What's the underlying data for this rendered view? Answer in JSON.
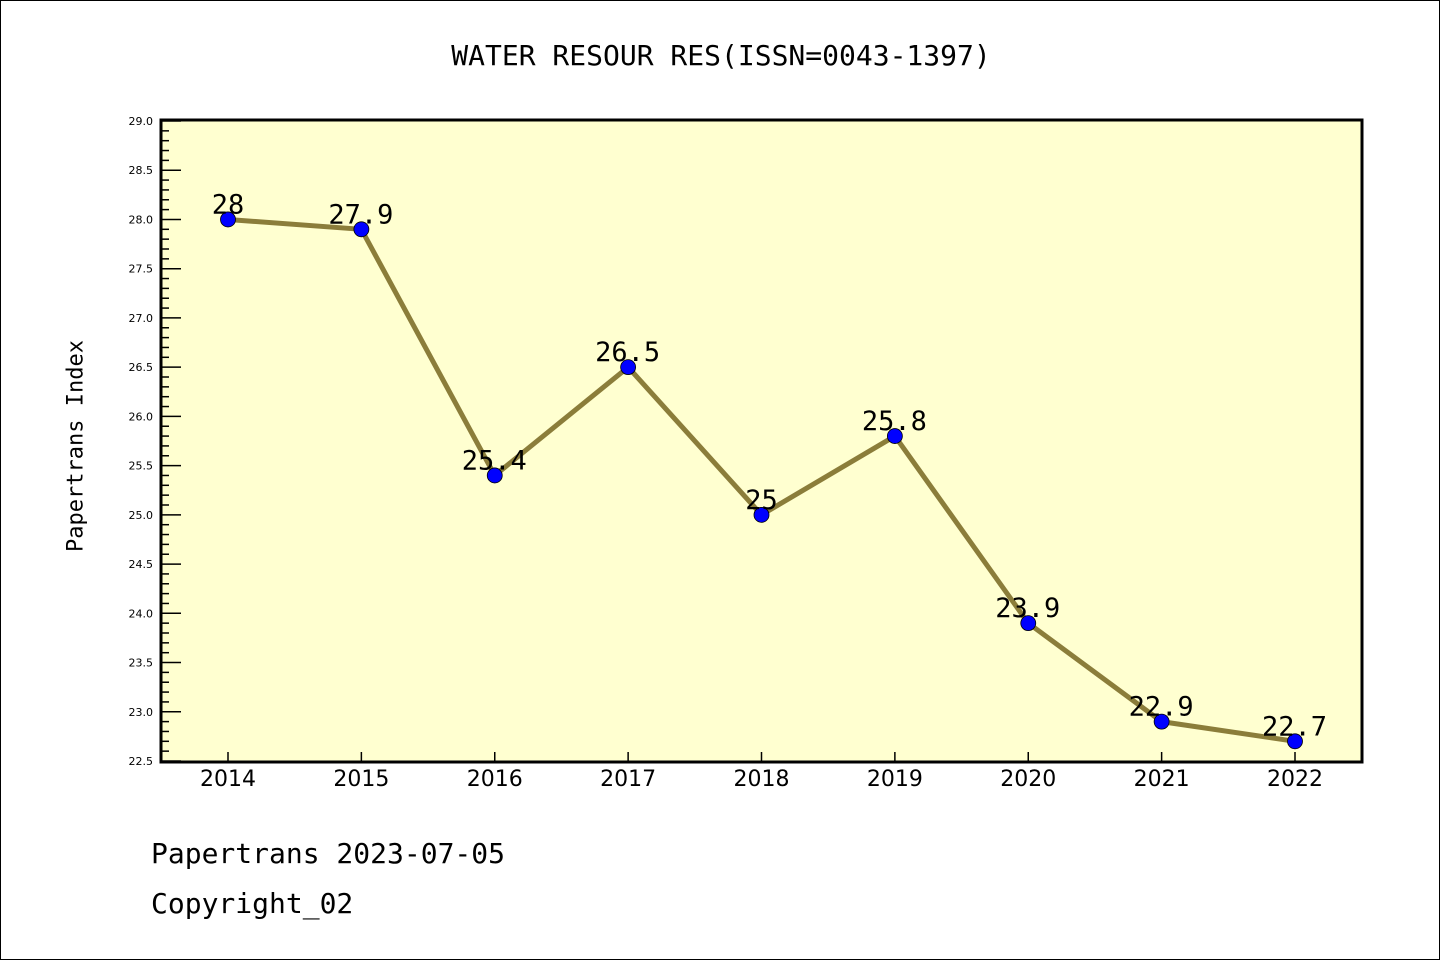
{
  "chart_data": {
    "type": "line",
    "title": "WATER RESOUR RES(ISSN=0043-1397)",
    "xlabel": "",
    "ylabel": "Papertrans Index",
    "x": [
      "2014",
      "2015",
      "2016",
      "2017",
      "2018",
      "2019",
      "2020",
      "2021",
      "2022"
    ],
    "values": [
      28,
      27.9,
      25.4,
      26.5,
      25,
      25.8,
      23.9,
      22.9,
      22.7
    ],
    "data_labels": [
      "28",
      "27.9",
      "25.4",
      "26.5",
      "25",
      "25.8",
      "23.9",
      "22.9",
      "22.7"
    ],
    "ylim": [
      22.5,
      29.0
    ],
    "yticks": [
      "22.5",
      "23.0",
      "23.5",
      "24.0",
      "24.5",
      "25.0",
      "25.5",
      "26.0",
      "26.5",
      "27.0",
      "27.5",
      "28.0",
      "28.5",
      "29.0"
    ],
    "grid": false,
    "colors": {
      "line": "#8b7d3a",
      "marker": "#0000ff",
      "plot_bg": "#ffffd0"
    }
  },
  "footer": {
    "line1": "Papertrans 2023-07-05",
    "line2": "Copyright_02"
  }
}
